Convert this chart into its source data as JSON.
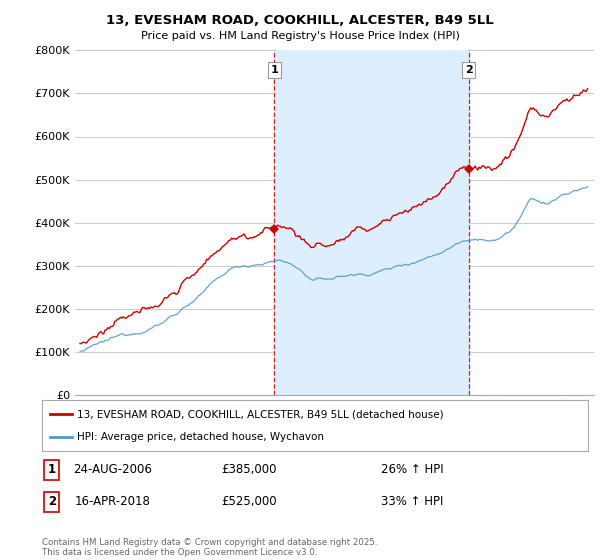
{
  "title": "13, EVESHAM ROAD, COOKHILL, ALCESTER, B49 5LL",
  "subtitle": "Price paid vs. HM Land Registry's House Price Index (HPI)",
  "sale1_date": "24-AUG-2006",
  "sale1_price": 385000,
  "sale1_hpi": "26% ↑ HPI",
  "sale2_date": "16-APR-2018",
  "sale2_price": 525000,
  "sale2_hpi": "33% ↑ HPI",
  "legend_red": "13, EVESHAM ROAD, COOKHILL, ALCESTER, B49 5LL (detached house)",
  "legend_blue": "HPI: Average price, detached house, Wychavon",
  "footer": "Contains HM Land Registry data © Crown copyright and database right 2025.\nThis data is licensed under the Open Government Licence v3.0.",
  "red_color": "#cc0000",
  "blue_color": "#5599cc",
  "shade_color": "#ddeeff",
  "vline_color": "#cc0000",
  "grid_color": "#cccccc",
  "bg_color": "#ffffff",
  "ylim": [
    0,
    800000
  ],
  "yticks": [
    0,
    100000,
    200000,
    300000,
    400000,
    500000,
    600000,
    700000,
    800000
  ],
  "ytick_labels": [
    "£0",
    "£100K",
    "£200K",
    "£300K",
    "£400K",
    "£500K",
    "£600K",
    "£700K",
    "£800K"
  ],
  "sale1_x": 2006.65,
  "sale2_x": 2018.29,
  "xmin": 1994.7,
  "xmax": 2025.8
}
